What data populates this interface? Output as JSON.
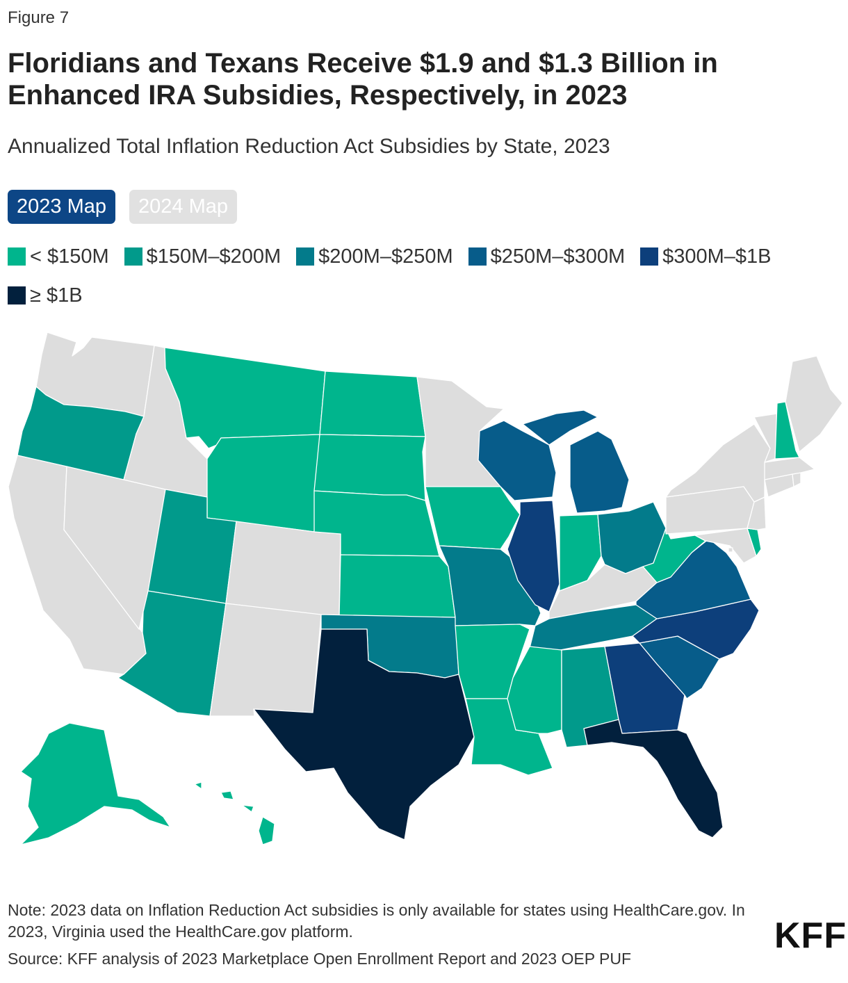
{
  "figure_label": "Figure 7",
  "title": "Floridians and Texans Receive $1.9 and $1.3 Billion in Enhanced IRA Subsidies, Respectively, in 2023",
  "subtitle": "Annualized Total Inflation Reduction Act Subsidies by State, 2023",
  "toggles": [
    {
      "label": "2023 Map",
      "active": true
    },
    {
      "label": "2024 Map",
      "active": false
    }
  ],
  "legend": [
    {
      "label": "< $150M",
      "color": "#00b58d"
    },
    {
      "label": "$150M–$200M",
      "color": "#019a8b"
    },
    {
      "label": "$200M–$250M",
      "color": "#037b8b"
    },
    {
      "label": "$250M–$300M",
      "color": "#075c8a"
    },
    {
      "label": "$300M–$1B",
      "color": "#0d3f7b"
    },
    {
      "label": "≥ $1B",
      "color": "#02203d"
    }
  ],
  "no_data_color": "#dddddd",
  "states": {
    "WA": "no-data",
    "OR": "$150M–$200M",
    "CA": "no-data",
    "NV": "no-data",
    "ID": "no-data",
    "MT": "< $150M",
    "WY": "< $150M",
    "UT": "$150M–$200M",
    "AZ": "$150M–$200M",
    "CO": "no-data",
    "NM": "no-data",
    "ND": "< $150M",
    "SD": "< $150M",
    "NE": "< $150M",
    "KS": "< $150M",
    "OK": "$200M–$250M",
    "TX": "≥ $1B",
    "MN": "no-data",
    "IA": "< $150M",
    "MO": "$200M–$250M",
    "AR": "< $150M",
    "LA": "< $150M",
    "WI": "$250M–$300M",
    "IL": "$300M–$1B",
    "MI": "$250M–$300M",
    "IN": "< $150M",
    "OH": "$200M–$250M",
    "KY": "no-data",
    "TN": "$200M–$250M",
    "MS": "< $150M",
    "AL": "$150M–$200M",
    "GA": "$300M–$1B",
    "FL": "≥ $1B",
    "SC": "$250M–$300M",
    "NC": "$300M–$1B",
    "VA": "$250M–$300M",
    "WV": "< $150M",
    "MD": "no-data",
    "DE": "< $150M",
    "NJ": "no-data",
    "PA": "no-data",
    "NY": "no-data",
    "VT": "no-data",
    "NH": "< $150M",
    "ME": "no-data",
    "MA": "no-data",
    "CT": "no-data",
    "RI": "no-data",
    "DC": "no-data",
    "AK": "< $150M",
    "HI": "< $150M"
  },
  "notes": "Note: 2023 data on Inflation Reduction Act subsidies is only available for states using HealthCare.gov. In 2023, Virginia used the HealthCare.gov platform.",
  "source": "Source: KFF analysis of 2023 Marketplace Open Enrollment Report and 2023 OEP PUF",
  "logo_text": "KFF"
}
